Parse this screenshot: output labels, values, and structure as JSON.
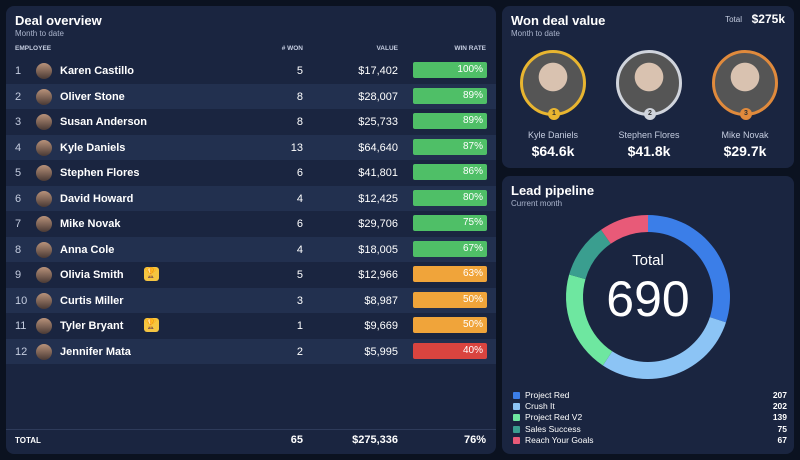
{
  "deal_overview": {
    "title": "Deal overview",
    "subtitle": "Month to date",
    "headers": {
      "employee": "EMPLOYEE",
      "won": "# WON",
      "value": "VALUE",
      "win_rate": "WIN RATE"
    },
    "rows": [
      {
        "rank": "1",
        "name": "Karen Castillo",
        "won": "5",
        "value": "$17,402",
        "win_rate": "100%",
        "color": "#4fbf67"
      },
      {
        "rank": "2",
        "name": "Oliver Stone",
        "won": "8",
        "value": "$28,007",
        "win_rate": "89%",
        "color": "#4fbf67"
      },
      {
        "rank": "3",
        "name": "Susan Anderson",
        "won": "8",
        "value": "$25,733",
        "win_rate": "89%",
        "color": "#4fbf67"
      },
      {
        "rank": "4",
        "name": "Kyle Daniels",
        "won": "13",
        "value": "$64,640",
        "win_rate": "87%",
        "color": "#4fbf67"
      },
      {
        "rank": "5",
        "name": "Stephen Flores",
        "won": "6",
        "value": "$41,801",
        "win_rate": "86%",
        "color": "#4fbf67"
      },
      {
        "rank": "6",
        "name": "David Howard",
        "won": "4",
        "value": "$12,425",
        "win_rate": "80%",
        "color": "#4fbf67"
      },
      {
        "rank": "7",
        "name": "Mike Novak",
        "won": "6",
        "value": "$29,706",
        "win_rate": "75%",
        "color": "#4fbf67"
      },
      {
        "rank": "8",
        "name": "Anna Cole",
        "won": "4",
        "value": "$18,005",
        "win_rate": "67%",
        "color": "#4fbf67"
      },
      {
        "rank": "9",
        "name": "Olivia Smith",
        "won": "5",
        "value": "$12,966",
        "win_rate": "63%",
        "color": "#f0a43a",
        "trophy": true
      },
      {
        "rank": "10",
        "name": "Curtis Miller",
        "won": "3",
        "value": "$8,987",
        "win_rate": "50%",
        "color": "#f0a43a"
      },
      {
        "rank": "11",
        "name": "Tyler Bryant",
        "won": "1",
        "value": "$9,669",
        "win_rate": "50%",
        "color": "#f0a43a",
        "trophy": true
      },
      {
        "rank": "12",
        "name": "Jennifer Mata",
        "won": "2",
        "value": "$5,995",
        "win_rate": "40%",
        "color": "#d9443f"
      }
    ],
    "total": {
      "label": "TOTAL",
      "won": "65",
      "value": "$275,336",
      "win_rate": "76%"
    }
  },
  "won_deal_value": {
    "title": "Won deal value",
    "subtitle": "Month to date",
    "total_label": "Total",
    "total_value": "$275k",
    "podium": [
      {
        "rank": "1",
        "name": "Kyle Daniels",
        "value": "$64.6k",
        "color": "#e8b530"
      },
      {
        "rank": "2",
        "name": "Stephen Flores",
        "value": "$41.8k",
        "color": "#d0d4dc"
      },
      {
        "rank": "3",
        "name": "Mike Novak",
        "value": "$29.7k",
        "color": "#e08a3c"
      }
    ]
  },
  "lead_pipeline": {
    "title": "Lead pipeline",
    "subtitle": "Current month",
    "center_label": "Total",
    "center_value": "690",
    "chart_data": {
      "type": "pie",
      "donut": true,
      "categories": [
        "Project Red",
        "Crush It",
        "Project Red V2",
        "Sales Success",
        "Reach Your Goals"
      ],
      "values": [
        207,
        202,
        139,
        75,
        67
      ],
      "colors": [
        "#3b7ee8",
        "#8cc4f5",
        "#6ee7a0",
        "#3a9e8f",
        "#e85a78"
      ]
    }
  }
}
